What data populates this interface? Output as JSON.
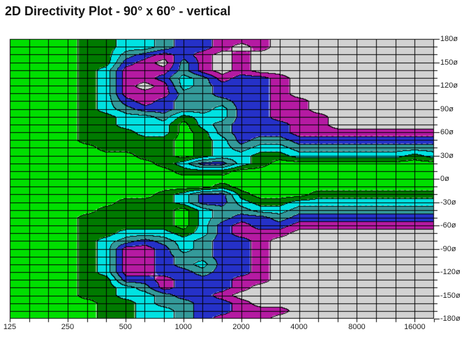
{
  "title": "2D Directivity Plot - 90° x 60° - vertical",
  "chart_data": {
    "type": "heatmap",
    "title": "2D Directivity Plot - 90° x 60° - vertical",
    "x_axis": {
      "unit": "Hz",
      "scale": "log",
      "range": [
        125,
        20000
      ],
      "gridline_spacing": "third-octave",
      "tick_labels": [
        "125",
        "250",
        "500",
        "1000",
        "2000",
        "4000",
        "8000",
        "16000"
      ]
    },
    "y_axis": {
      "unit": "deg",
      "range": [
        -180,
        180
      ],
      "gridline_step": 10,
      "tick_labels": [
        "180ø",
        "150ø",
        "120ø",
        "90ø",
        "60ø",
        "30ø",
        "0ø",
        "-30ø",
        "-60ø",
        "-90ø",
        "-120ø",
        "-150ø",
        "-180ø"
      ]
    },
    "legend": "none",
    "levels_palette": [
      "#00df00",
      "#007a00",
      "#00e2e2",
      "#349a9a",
      "#2531c8",
      "#b51aa2",
      "#d2d2d2"
    ],
    "grid_color": "#000000",
    "frequencies": [
      125,
      160,
      200,
      250,
      315,
      400,
      500,
      630,
      800,
      1000,
      1250,
      1600,
      2000,
      2500,
      3150,
      4000,
      5000,
      6300,
      8000,
      10000,
      12500,
      16000,
      20000
    ],
    "angles_deg": [
      180,
      170,
      160,
      150,
      140,
      130,
      120,
      110,
      100,
      90,
      80,
      70,
      60,
      50,
      40,
      30,
      20,
      10,
      0,
      -10,
      -20,
      -30,
      -40,
      -50,
      -60,
      -70,
      -80,
      -90,
      -100,
      -110,
      -120,
      -130,
      -140,
      -150,
      -160,
      -170,
      -180
    ],
    "levels": [
      [
        0,
        0,
        0,
        0,
        1,
        1,
        2,
        2,
        3,
        4,
        4,
        5,
        5,
        5,
        6,
        6,
        6,
        6,
        6,
        6,
        6,
        6,
        6
      ],
      [
        0,
        0,
        0,
        0,
        1,
        1,
        2,
        2,
        3,
        4,
        4,
        5,
        6,
        5,
        6,
        6,
        6,
        6,
        6,
        6,
        6,
        6,
        6
      ],
      [
        0,
        0,
        0,
        0,
        1,
        1,
        3,
        4,
        5,
        4,
        5,
        6,
        5,
        6,
        6,
        6,
        6,
        6,
        6,
        6,
        6,
        6,
        6
      ],
      [
        0,
        0,
        0,
        0,
        1,
        1,
        4,
        5,
        6,
        3,
        5,
        6,
        5,
        6,
        6,
        6,
        6,
        6,
        6,
        6,
        6,
        6,
        6
      ],
      [
        0,
        0,
        0,
        0,
        1,
        2,
        5,
        5,
        5,
        3,
        5,
        6,
        5,
        6,
        6,
        6,
        6,
        6,
        6,
        6,
        6,
        6,
        6
      ],
      [
        0,
        0,
        0,
        0,
        1,
        2,
        5,
        5,
        4,
        2,
        3,
        5,
        4,
        4,
        5,
        6,
        6,
        6,
        6,
        6,
        6,
        6,
        6
      ],
      [
        0,
        0,
        0,
        0,
        1,
        2,
        5,
        6,
        5,
        2,
        3,
        4,
        4,
        4,
        5,
        6,
        6,
        6,
        6,
        6,
        6,
        6,
        6
      ],
      [
        0,
        0,
        0,
        0,
        1,
        2,
        5,
        5,
        5,
        3,
        3,
        4,
        4,
        4,
        5,
        6,
        6,
        6,
        6,
        6,
        6,
        6,
        6
      ],
      [
        0,
        0,
        0,
        0,
        1,
        2,
        4,
        5,
        4,
        3,
        3,
        3,
        4,
        4,
        5,
        5,
        6,
        6,
        6,
        6,
        6,
        6,
        6
      ],
      [
        0,
        0,
        0,
        0,
        1,
        2,
        3,
        4,
        4,
        3,
        3,
        2,
        4,
        4,
        5,
        5,
        6,
        6,
        6,
        6,
        6,
        6,
        6
      ],
      [
        0,
        0,
        0,
        0,
        1,
        1,
        2,
        2,
        3,
        1,
        2,
        2,
        4,
        4,
        5,
        5,
        5,
        6,
        6,
        6,
        6,
        6,
        6
      ],
      [
        0,
        0,
        0,
        0,
        1,
        1,
        2,
        2,
        2,
        0,
        2,
        3,
        4,
        4,
        4,
        5,
        5,
        6,
        6,
        6,
        6,
        6,
        6
      ],
      [
        0,
        0,
        0,
        0,
        1,
        1,
        1,
        2,
        2,
        0,
        1,
        3,
        4,
        4,
        4,
        5,
        5,
        5,
        5,
        5,
        5,
        5,
        5
      ],
      [
        0,
        0,
        0,
        0,
        1,
        1,
        1,
        1,
        1,
        0,
        1,
        2,
        4,
        3,
        3,
        4,
        4,
        4,
        4,
        4,
        4,
        4,
        4
      ],
      [
        0,
        0,
        0,
        0,
        0,
        1,
        1,
        1,
        1,
        0,
        1,
        2,
        3,
        2,
        2,
        3,
        3,
        3,
        3,
        3,
        3,
        3,
        3
      ],
      [
        0,
        0,
        0,
        0,
        0,
        0,
        0,
        1,
        1,
        0,
        1,
        2,
        2,
        1,
        1,
        2,
        2,
        2,
        2,
        2,
        2,
        1,
        2
      ],
      [
        0,
        0,
        0,
        0,
        0,
        0,
        0,
        0,
        1,
        2,
        4,
        4,
        2,
        1,
        0,
        0,
        0,
        0,
        0,
        0,
        0,
        0,
        0
      ],
      [
        0,
        0,
        0,
        0,
        0,
        0,
        0,
        0,
        0,
        1,
        1,
        1,
        0,
        0,
        0,
        0,
        0,
        0,
        0,
        0,
        0,
        0,
        0
      ],
      [
        0,
        0,
        0,
        0,
        0,
        0,
        0,
        0,
        0,
        0,
        0,
        0,
        0,
        0,
        0,
        0,
        0,
        0,
        0,
        0,
        0,
        0,
        0
      ],
      [
        0,
        0,
        0,
        0,
        0,
        0,
        0,
        0,
        0,
        0,
        0,
        1,
        0,
        0,
        0,
        0,
        0,
        0,
        0,
        0,
        0,
        0,
        0
      ],
      [
        0,
        0,
        0,
        0,
        0,
        0,
        0,
        0,
        1,
        2,
        4,
        4,
        1,
        0,
        0,
        0,
        1,
        1,
        1,
        1,
        1,
        1,
        1
      ],
      [
        0,
        0,
        0,
        0,
        0,
        0,
        1,
        1,
        1,
        2,
        4,
        4,
        2,
        1,
        1,
        2,
        2,
        2,
        2,
        2,
        2,
        2,
        2
      ],
      [
        0,
        0,
        0,
        0,
        0,
        1,
        1,
        1,
        1,
        0,
        2,
        3,
        3,
        2,
        2,
        3,
        3,
        3,
        3,
        3,
        3,
        3,
        3
      ],
      [
        0,
        0,
        0,
        0,
        1,
        1,
        1,
        1,
        1,
        0,
        2,
        3,
        4,
        4,
        3,
        4,
        4,
        4,
        4,
        4,
        4,
        4,
        4
      ],
      [
        0,
        0,
        0,
        0,
        1,
        1,
        1,
        1,
        1,
        0,
        2,
        4,
        5,
        4,
        4,
        5,
        5,
        5,
        5,
        5,
        5,
        5,
        5
      ],
      [
        0,
        0,
        0,
        0,
        1,
        1,
        2,
        2,
        2,
        1,
        2,
        4,
        5,
        5,
        5,
        6,
        6,
        6,
        6,
        6,
        6,
        6,
        6
      ],
      [
        0,
        0,
        0,
        0,
        1,
        2,
        3,
        4,
        3,
        2,
        3,
        4,
        4,
        5,
        6,
        6,
        6,
        6,
        6,
        6,
        6,
        6,
        6
      ],
      [
        0,
        0,
        0,
        0,
        1,
        2,
        5,
        5,
        4,
        2,
        3,
        4,
        4,
        5,
        6,
        6,
        6,
        6,
        6,
        6,
        6,
        6,
        6
      ],
      [
        0,
        0,
        0,
        0,
        1,
        2,
        5,
        5,
        4,
        3,
        3,
        4,
        4,
        5,
        6,
        6,
        6,
        6,
        6,
        6,
        6,
        6,
        6
      ],
      [
        0,
        0,
        0,
        0,
        1,
        2,
        5,
        5,
        4,
        3,
        2,
        4,
        4,
        5,
        6,
        6,
        6,
        6,
        6,
        6,
        6,
        6,
        6
      ],
      [
        0,
        0,
        0,
        0,
        1,
        2,
        5,
        5,
        4,
        4,
        3,
        4,
        4,
        5,
        6,
        6,
        6,
        6,
        6,
        6,
        6,
        6,
        6
      ],
      [
        0,
        0,
        0,
        0,
        1,
        1,
        4,
        4,
        5,
        4,
        4,
        4,
        5,
        5,
        6,
        6,
        6,
        6,
        6,
        6,
        6,
        6,
        6
      ],
      [
        0,
        0,
        0,
        0,
        1,
        1,
        2,
        3,
        5,
        4,
        4,
        4,
        5,
        6,
        6,
        6,
        6,
        6,
        6,
        6,
        6,
        6,
        6
      ],
      [
        0,
        0,
        0,
        0,
        1,
        1,
        2,
        2,
        3,
        4,
        4,
        5,
        6,
        6,
        6,
        6,
        6,
        6,
        6,
        6,
        6,
        6,
        6
      ],
      [
        0,
        0,
        0,
        0,
        0,
        1,
        1,
        2,
        3,
        3,
        4,
        4,
        5,
        6,
        6,
        6,
        6,
        6,
        6,
        6,
        6,
        6,
        6
      ],
      [
        0,
        0,
        0,
        0,
        0,
        1,
        1,
        2,
        2,
        3,
        4,
        4,
        5,
        5,
        5,
        6,
        6,
        6,
        6,
        6,
        6,
        6,
        6
      ],
      [
        0,
        0,
        0,
        0,
        0,
        1,
        1,
        2,
        2,
        3,
        4,
        5,
        5,
        5,
        6,
        6,
        6,
        6,
        6,
        6,
        6,
        6,
        6
      ]
    ]
  }
}
